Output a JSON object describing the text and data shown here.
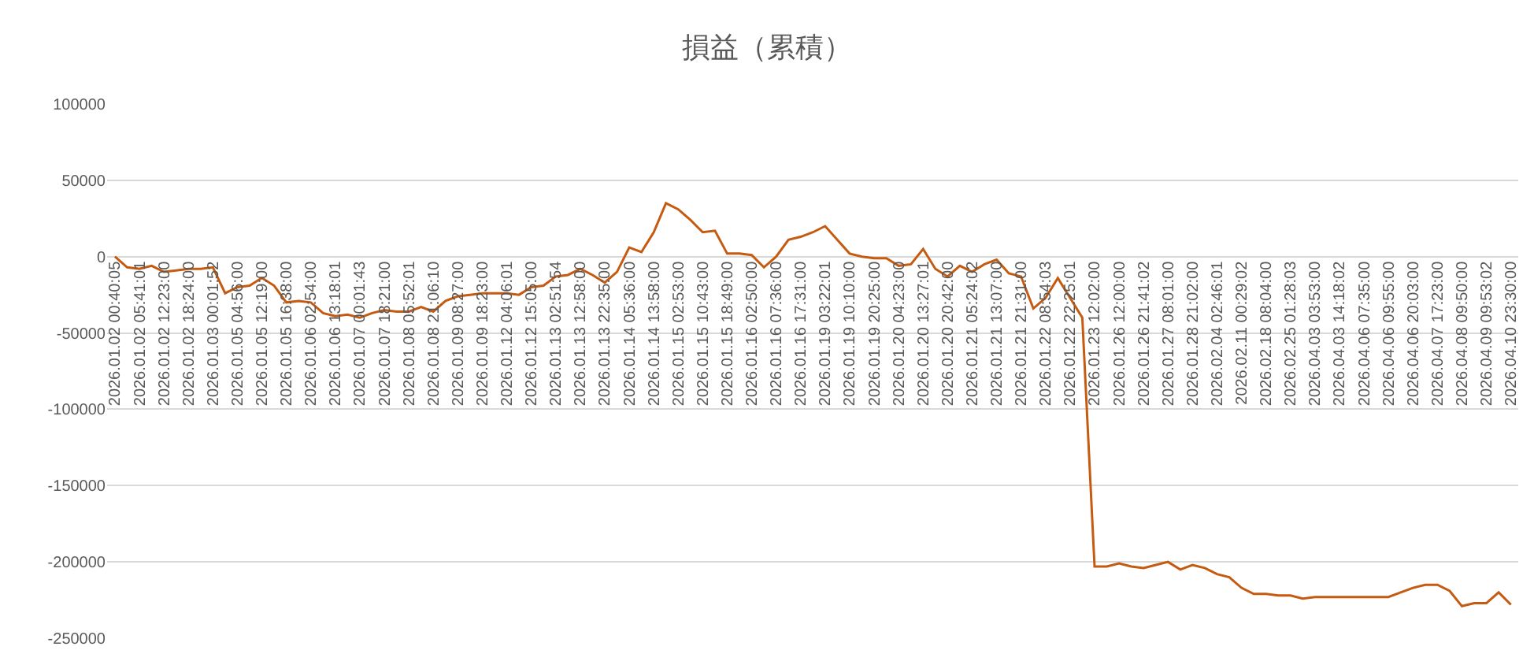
{
  "chart_data": {
    "type": "line",
    "title": "損益（累積）",
    "categories": [
      "2026.01.02 00:40:05",
      null,
      "2026.01.02 05:41:01",
      null,
      "2026.01.02 12:23:00",
      null,
      "2026.01.02 18:24:00",
      null,
      "2026.01.03 00:01:52",
      null,
      "2026.01.05 04:56:00",
      null,
      "2026.01.05 12:19:00",
      null,
      "2026.01.05 16:38:00",
      null,
      "2026.01.06 02:54:00",
      null,
      "2026.01.06 13:18:01",
      null,
      "2026.01.07 00:01:43",
      null,
      "2026.01.07 18:21:00",
      null,
      "2026.01.08 05:52:01",
      null,
      "2026.01.08 21:06:10",
      null,
      "2026.01.09 08:27:00",
      null,
      "2026.01.09 18:23:00",
      null,
      "2026.01.12 04:06:01",
      null,
      "2026.01.12 15:05:00",
      null,
      "2026.01.13 02:51:54",
      null,
      "2026.01.13 12:58:00",
      null,
      "2026.01.13 22:35:00",
      null,
      "2026.01.14 05:36:00",
      null,
      "2026.01.14 13:58:00",
      null,
      "2026.01.15 02:53:00",
      null,
      "2026.01.15 10:43:00",
      null,
      "2026.01.15 18:49:00",
      null,
      "2026.01.16 02:50:00",
      null,
      "2026.01.16 07:36:00",
      null,
      "2026.01.16 17:31:00",
      null,
      "2026.01.19 03:22:01",
      null,
      "2026.01.19 10:10:00",
      null,
      "2026.01.19 20:25:00",
      null,
      "2026.01.20 04:23:00",
      null,
      "2026.01.20 13:27:01",
      null,
      "2026.01.20 20:42:00",
      null,
      "2026.01.21 05:24:02",
      null,
      "2026.01.21 13:07:00",
      null,
      "2026.01.21 21:31:00",
      null,
      "2026.01.22 08:54:03",
      null,
      "2026.01.22 22:25:01",
      null,
      "2026.01.23 12:02:00",
      null,
      "2026.01.26 12:00:00",
      null,
      "2026.01.26 21:41:02",
      null,
      "2026.01.27 08:01:00",
      null,
      "2026.01.28 21:02:00",
      null,
      "2026.02.04 02:46:01",
      null,
      "2026.02.11 00:29:02",
      null,
      "2026.02.18 08:04:00",
      null,
      "2026.02.25 01:28:03",
      null,
      "2026.04.03 03:53:00",
      null,
      "2026.04.03 14:18:02",
      null,
      "2026.04.06 07:35:00",
      null,
      "2026.04.06 09:55:00",
      null,
      "2026.04.06 20:03:00",
      null,
      "2026.04.07 17:23:00",
      null,
      "2026.04.08 09:50:00",
      null,
      "2026.04.09 09:53:02",
      null,
      "2026.04.10 23:30:00"
    ],
    "series": [
      {
        "color": "#c55a11",
        "values": [
          0,
          -7000,
          -8000,
          -6000,
          -10000,
          -9000,
          -8000,
          -8000,
          -7000,
          -24000,
          -20000,
          -19000,
          -14000,
          -19000,
          -30000,
          -29000,
          -30000,
          -37000,
          -39000,
          -38000,
          -40000,
          -37000,
          -35000,
          -36000,
          -36000,
          -33000,
          -36000,
          -29000,
          -26000,
          -25000,
          -24000,
          -24000,
          -24000,
          -25000,
          -20000,
          -19000,
          -13000,
          -12000,
          -8000,
          -12000,
          -17000,
          -10000,
          6000,
          3000,
          16000,
          35000,
          31000,
          24000,
          16000,
          17000,
          2000,
          2000,
          1000,
          -7000,
          0,
          11000,
          13000,
          16000,
          20000,
          11000,
          2000,
          0,
          -1000,
          -1000,
          -6000,
          -5000,
          5000,
          -8000,
          -13000,
          -6000,
          -10000,
          -5000,
          -2000,
          -11000,
          -13000,
          -34000,
          -27000,
          -14000,
          -27000,
          -40000,
          -203000,
          -203000,
          -201000,
          -203000,
          -204000,
          -202000,
          -200000,
          -205000,
          -202000,
          -204000,
          -208000,
          -210000,
          -217000,
          -221000,
          -221000,
          -222000,
          -222000,
          -224000,
          -223000,
          -223000,
          -223000,
          -223000,
          -223000,
          -223000,
          -223000,
          -220000,
          -217000,
          -215000,
          -215000,
          -219000,
          -229000,
          -227000,
          -227000,
          -220000,
          -228000
        ]
      }
    ],
    "ylim": [
      -250000,
      100000
    ],
    "yticks": [
      -250000,
      -200000,
      -150000,
      -100000,
      -50000,
      0,
      50000,
      100000
    ],
    "grid": "y",
    "marker": "none",
    "line_style": "solid"
  }
}
